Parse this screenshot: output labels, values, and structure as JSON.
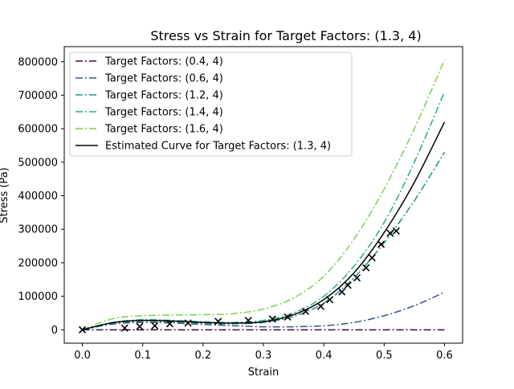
{
  "chart_data": {
    "type": "line",
    "title": "Stress vs Strain for Target Factors: (1.3, 4)",
    "xlabel": "Strain",
    "ylabel": "Stress (Pa)",
    "xlim": [
      -0.03,
      0.63
    ],
    "ylim": [
      -40000,
      845000
    ],
    "xticks": [
      0.0,
      0.1,
      0.2,
      0.3,
      0.4,
      0.5,
      0.6
    ],
    "xtick_labels": [
      "0.0",
      "0.1",
      "0.2",
      "0.3",
      "0.4",
      "0.5",
      "0.6"
    ],
    "yticks": [
      0,
      100000,
      200000,
      300000,
      400000,
      500000,
      600000,
      700000,
      800000
    ],
    "ytick_labels": [
      "0",
      "100000",
      "200000",
      "300000",
      "400000",
      "500000",
      "600000",
      "700000",
      "800000"
    ],
    "grid": false,
    "legend_position": "top-left",
    "x": [
      0.0,
      0.05,
      0.1,
      0.15,
      0.2,
      0.25,
      0.3,
      0.35,
      0.4,
      0.45,
      0.5,
      0.55,
      0.6
    ],
    "series": [
      {
        "name": "Target Factors: (0.4, 4)",
        "style": "dashdot",
        "color": "#440154",
        "values": [
          0,
          0,
          0,
          0,
          0,
          0,
          0,
          0,
          0,
          0,
          0,
          0,
          0
        ]
      },
      {
        "name": "Target Factors: (0.6, 4)",
        "style": "dashdot",
        "color": "#3b518b",
        "values": [
          0,
          17000,
          22000,
          20000,
          16000,
          12000,
          9000,
          9000,
          12000,
          22000,
          42000,
          72000,
          112000
        ]
      },
      {
        "name": "Target Factors: (1.2, 4)",
        "style": "dashdot",
        "color": "#21908d",
        "values": [
          0,
          20000,
          26000,
          24000,
          20000,
          18000,
          22000,
          40000,
          80000,
          155000,
          260000,
          385000,
          530000
        ]
      },
      {
        "name": "Target Factors: (1.4, 4)",
        "style": "dashdot",
        "color": "#27ad81",
        "values": [
          0,
          22000,
          30000,
          28000,
          24000,
          22000,
          28000,
          50000,
          100000,
          190000,
          320000,
          500000,
          710000
        ]
      },
      {
        "name": "Target Factors: (1.6, 4)",
        "style": "dashdot",
        "color": "#7ad151",
        "values": [
          0,
          33000,
          42000,
          44000,
          45000,
          48000,
          62000,
          95000,
          160000,
          270000,
          420000,
          600000,
          805000
        ]
      },
      {
        "name": "Estimated Curve for Target Factors: (1.3, 4)",
        "style": "solid",
        "color": "#000000",
        "values": [
          0,
          21000,
          28000,
          26000,
          22000,
          20000,
          24000,
          45000,
          90000,
          170000,
          290000,
          440000,
          620000
        ]
      }
    ],
    "markers": {
      "style": "x",
      "color": "#000000",
      "x": [
        0.0,
        0.07,
        0.095,
        0.12,
        0.145,
        0.175,
        0.225,
        0.275,
        0.315,
        0.34,
        0.37,
        0.395,
        0.41,
        0.43,
        0.44,
        0.455,
        0.47,
        0.48,
        0.495,
        0.51,
        0.52
      ],
      "y": [
        0,
        5000,
        10000,
        12000,
        18000,
        20000,
        25000,
        28000,
        32000,
        38000,
        55000,
        70000,
        90000,
        113000,
        133000,
        155000,
        185000,
        215000,
        255000,
        288000,
        295000
      ]
    }
  }
}
